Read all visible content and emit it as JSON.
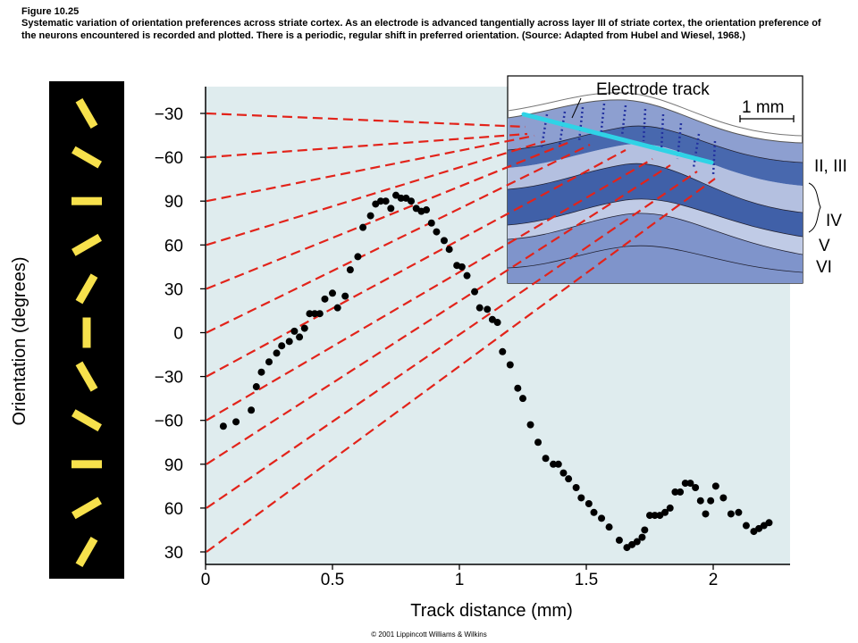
{
  "caption": {
    "figure_label": "Figure 10.25",
    "text": "Systematic variation of orientation preferences across striate cortex. As an electrode is advanced tangentially across layer III of striate cortex, the orientation preference of the neurons encountered is recorded and plotted. There is a periodic, regular shift in preferred orientation. (Source: Adapted from Hubel and Wiesel, 1968.)"
  },
  "copyright": "© 2001 Lippincott Williams & Wilkins",
  "chart_data": {
    "type": "scatter",
    "xlabel": "Track distance (mm)",
    "ylabel": "Orientation (degrees)",
    "xlim": [
      0,
      2.3
    ],
    "x_ticks": [
      0,
      0.5,
      1,
      1.5,
      2
    ],
    "x_tick_labels": [
      "0",
      "0.5",
      "1",
      "1.5",
      "2"
    ],
    "y_tick_labels": [
      "-30",
      "-60",
      "90",
      "60",
      "30",
      "0",
      "-30",
      "-60",
      "90",
      "60",
      "30"
    ],
    "y_axis_note": "Orientation wraps every 180 degrees; ticks run 30, 60, 90, -60, -30, 0, 30, 60, 90, -60, -30 from bottom to top (continuous increasing scale).",
    "y_continuous_range": [
      30,
      330
    ],
    "series": [
      {
        "x": [
          0.07,
          0.12,
          0.18,
          0.2,
          0.22,
          0.25,
          0.28,
          0.3,
          0.33,
          0.35,
          0.37,
          0.39,
          0.41,
          0.43,
          0.45,
          0.47,
          0.5,
          0.52,
          0.55,
          0.57,
          0.6,
          0.62,
          0.65,
          0.67,
          0.69,
          0.71,
          0.73,
          0.75,
          0.77,
          0.79,
          0.81,
          0.83,
          0.85,
          0.87,
          0.89,
          0.91,
          0.94,
          0.96,
          0.99,
          1.01,
          1.03,
          1.06,
          1.08,
          1.11,
          1.13,
          1.15,
          1.17,
          1.2,
          1.23,
          1.25,
          1.28,
          1.31,
          1.34,
          1.37,
          1.39,
          1.41,
          1.43,
          1.46,
          1.48,
          1.51,
          1.53,
          1.56,
          1.59,
          1.63,
          1.66,
          1.68,
          1.7,
          1.72,
          1.73,
          1.75,
          1.77,
          1.79,
          1.81,
          1.83,
          1.85,
          1.87,
          1.89,
          1.91,
          1.93,
          1.95,
          1.97,
          1.99,
          2.01,
          2.04,
          2.07,
          2.1,
          2.13,
          2.16,
          2.18,
          2.2,
          2.22
        ],
        "y": [
          116,
          119,
          127,
          143,
          153,
          160,
          166,
          171,
          174,
          181,
          177,
          183,
          193,
          193,
          193,
          203,
          207,
          197,
          205,
          223,
          232,
          252,
          260,
          268,
          270,
          270,
          265,
          274,
          272,
          272,
          270,
          265,
          263,
          264,
          255,
          249,
          243,
          237,
          226,
          225,
          219,
          208,
          197,
          196,
          189,
          187,
          167,
          158,
          142,
          135,
          117,
          105,
          94,
          90,
          90,
          84,
          80,
          74,
          67,
          63,
          57,
          53,
          47,
          38,
          33,
          35,
          37,
          40,
          45,
          55,
          55,
          55,
          57,
          60,
          71,
          71,
          77,
          77,
          74,
          65,
          56,
          65,
          75,
          67,
          56,
          57,
          48,
          44,
          46,
          48,
          50
        ]
      }
    ],
    "orientation_bars": [
      -30,
      -60,
      90,
      60,
      30,
      0,
      -30,
      -60,
      90,
      60,
      30
    ],
    "inset": {
      "label": "Electrode track",
      "scale_label": "1 mm",
      "layer_labels": [
        "II, III",
        "IV",
        "V",
        "VI"
      ]
    },
    "colors": {
      "background": "#dfecee",
      "points": "#000000",
      "dashed_lines": "#e2231a",
      "bars": "#f7e14c",
      "bar_panel": "#000000",
      "electrode": "#2fd3e6",
      "layer_dark": "#4060a8",
      "layer_mid": "#7f94cb",
      "layer_light": "#c0cbe6"
    }
  }
}
